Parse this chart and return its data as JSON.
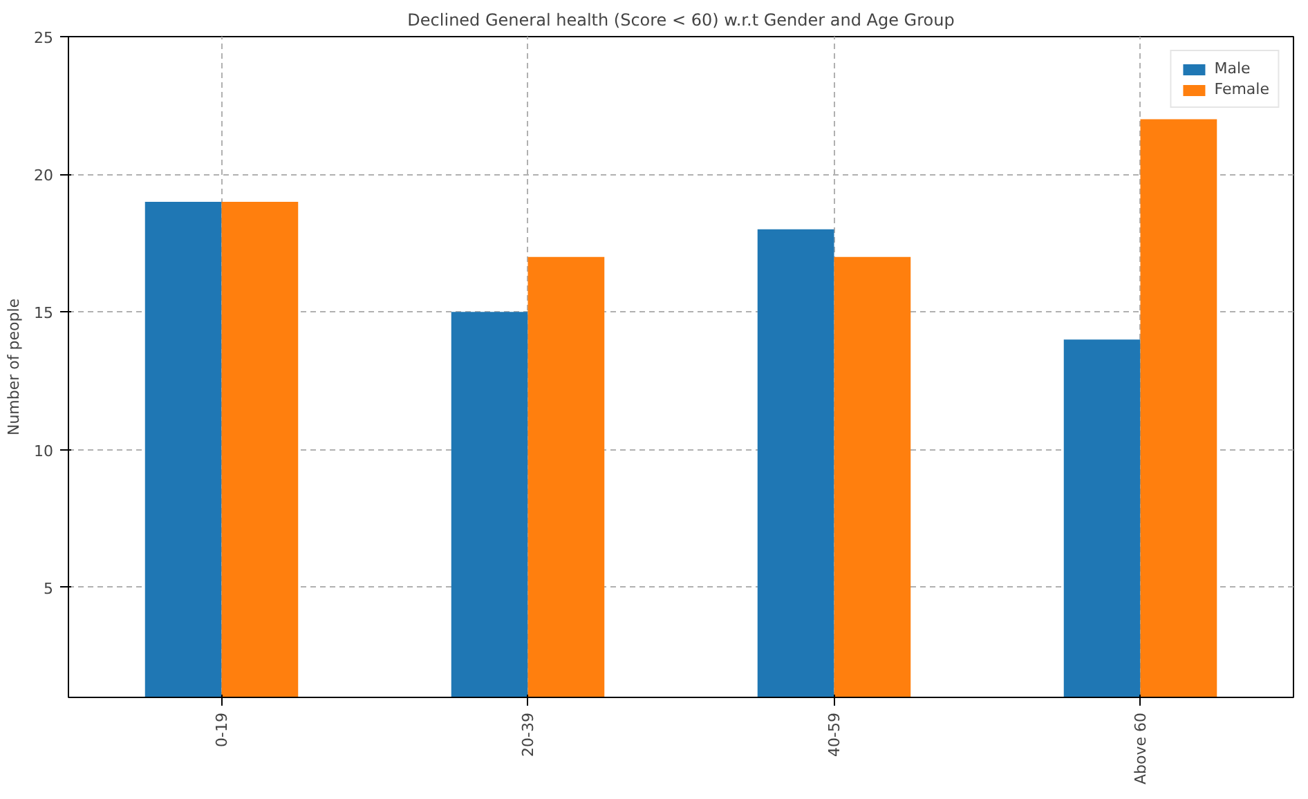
{
  "chart_data": {
    "type": "bar",
    "title": "Declined General health (Score < 60) w.r.t Gender and Age Group",
    "ylabel": "Number of people",
    "categories": [
      "0-19",
      "20-39",
      "40-59",
      "Above 60"
    ],
    "series": [
      {
        "name": "Male",
        "color": "#1f77b4",
        "values": [
          19,
          15,
          18,
          14
        ]
      },
      {
        "name": "Female",
        "color": "#ff7f0e",
        "values": [
          19,
          17,
          17,
          22
        ]
      }
    ],
    "ylim": [
      1,
      25
    ],
    "yticks": [
      5,
      10,
      15,
      20,
      25
    ],
    "grid": true,
    "legend": "top right"
  }
}
